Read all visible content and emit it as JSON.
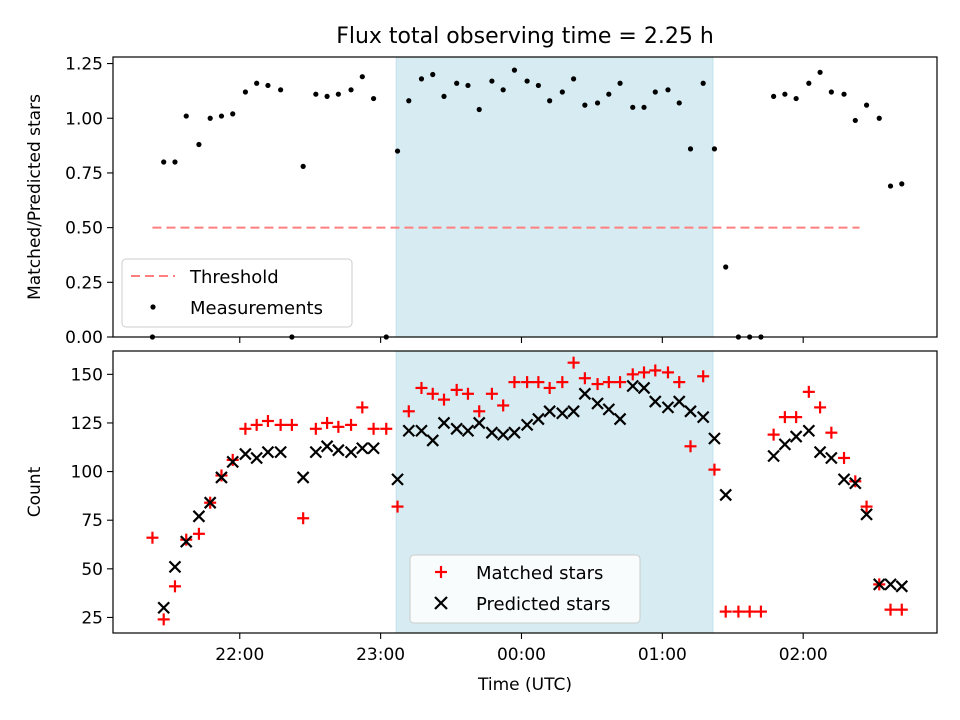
{
  "chart_data": [
    {
      "type": "scatter",
      "title": "Flux total observing time = 2.25 h",
      "ylabel": "Matched/Predicted stars",
      "xlabel": "",
      "x_unit": "hours after 22:00 UTC (negative = before 22:00)",
      "xlim": [
        -0.9,
        4.95
      ],
      "ylim": [
        0,
        1.28
      ],
      "yticks": [
        "0.00",
        "0.25",
        "0.50",
        "0.75",
        "1.00",
        "1.25"
      ],
      "shaded_span": [
        1.11,
        3.36
      ],
      "threshold": {
        "name": "Threshold",
        "value": 0.5,
        "x_range": [
          -0.62,
          4.4
        ],
        "color": "#ff7f7f"
      },
      "series": [
        {
          "name": "Measurements",
          "color": "#000000",
          "x": [
            -0.62,
            -0.54,
            -0.46,
            -0.38,
            -0.29,
            -0.21,
            -0.13,
            -0.05,
            0.04,
            0.12,
            0.2,
            0.29,
            0.37,
            0.45,
            0.54,
            0.62,
            0.7,
            0.79,
            0.87,
            0.95,
            1.04,
            1.12,
            1.2,
            1.29,
            1.37,
            1.45,
            1.54,
            1.62,
            1.7,
            1.79,
            1.87,
            1.95,
            2.04,
            2.12,
            2.2,
            2.29,
            2.37,
            2.45,
            2.54,
            2.62,
            2.7,
            2.79,
            2.87,
            2.95,
            3.04,
            3.12,
            3.2,
            3.29,
            3.37,
            3.45,
            3.54,
            3.62,
            3.7,
            3.79,
            3.87,
            3.95,
            4.04,
            4.12,
            4.2,
            4.29,
            4.37,
            4.45,
            4.54,
            4.62,
            4.7
          ],
          "y": [
            0.0,
            0.8,
            0.8,
            1.01,
            0.88,
            1.0,
            1.01,
            1.02,
            1.12,
            1.16,
            1.15,
            1.13,
            0.0,
            0.78,
            1.11,
            1.1,
            1.11,
            1.13,
            1.19,
            1.09,
            0.0,
            0.85,
            1.08,
            1.18,
            1.2,
            1.1,
            1.16,
            1.15,
            1.04,
            1.17,
            1.13,
            1.22,
            1.17,
            1.15,
            1.08,
            1.12,
            1.18,
            1.06,
            1.07,
            1.11,
            1.16,
            1.05,
            1.05,
            1.12,
            1.13,
            1.07,
            0.86,
            1.16,
            0.86,
            0.32,
            0.0,
            0.0,
            0.0,
            1.1,
            1.11,
            1.09,
            1.16,
            1.21,
            1.12,
            1.11,
            0.99,
            1.06,
            1.0,
            0.69,
            0.7
          ]
        }
      ]
    },
    {
      "type": "scatter",
      "title": "",
      "xlabel": "Time (UTC)",
      "ylabel": "Count",
      "x_unit": "hours after 22:00 UTC (negative = before 22:00)",
      "xlim": [
        -0.9,
        4.95
      ],
      "ylim": [
        17,
        162
      ],
      "xtick_values": [
        0,
        1,
        2,
        3,
        4
      ],
      "xticks": [
        "22:00",
        "23:00",
        "00:00",
        "01:00",
        "02:00"
      ],
      "yticks": [
        "25",
        "50",
        "75",
        "100",
        "125",
        "150"
      ],
      "shaded_span": [
        1.11,
        3.36
      ],
      "series": [
        {
          "name": "Matched stars",
          "color": "#ff0000",
          "marker": "+",
          "x": [
            -0.62,
            -0.54,
            -0.46,
            -0.38,
            -0.29,
            -0.21,
            -0.13,
            -0.05,
            0.04,
            0.12,
            0.2,
            0.29,
            0.37,
            0.45,
            0.54,
            0.62,
            0.7,
            0.79,
            0.87,
            0.95,
            1.04,
            1.12,
            1.2,
            1.29,
            1.37,
            1.45,
            1.54,
            1.62,
            1.7,
            1.79,
            1.87,
            1.95,
            2.04,
            2.12,
            2.2,
            2.29,
            2.37,
            2.45,
            2.54,
            2.62,
            2.7,
            2.79,
            2.87,
            2.95,
            3.04,
            3.12,
            3.2,
            3.29,
            3.37,
            3.45,
            3.54,
            3.62,
            3.7,
            3.79,
            3.87,
            3.95,
            4.04,
            4.12,
            4.2,
            4.29,
            4.37,
            4.45,
            4.54,
            4.62,
            4.7
          ],
          "y": [
            66,
            24,
            41,
            65,
            68,
            84,
            98,
            106,
            122,
            124,
            126,
            124,
            124,
            76,
            122,
            125,
            123,
            124,
            133,
            122,
            122,
            82,
            131,
            143,
            140,
            137,
            142,
            140,
            131,
            140,
            134,
            146,
            146,
            146,
            143,
            146,
            156,
            148,
            145,
            146,
            146,
            150,
            151,
            152,
            151,
            146,
            113,
            149,
            101,
            28,
            28,
            28,
            28,
            119,
            128,
            128,
            141,
            133,
            120,
            107,
            95,
            82,
            42,
            29,
            29
          ]
        },
        {
          "name": "Predicted stars",
          "color": "#000000",
          "marker": "x",
          "x": [
            -0.54,
            -0.46,
            -0.38,
            -0.29,
            -0.21,
            -0.13,
            -0.05,
            0.04,
            0.12,
            0.2,
            0.29,
            0.45,
            0.54,
            0.62,
            0.7,
            0.79,
            0.87,
            0.95,
            1.12,
            1.2,
            1.29,
            1.37,
            1.45,
            1.54,
            1.62,
            1.7,
            1.79,
            1.87,
            1.95,
            2.04,
            2.12,
            2.2,
            2.29,
            2.37,
            2.45,
            2.54,
            2.62,
            2.7,
            2.79,
            2.87,
            2.95,
            3.04,
            3.12,
            3.2,
            3.29,
            3.37,
            3.45,
            3.79,
            3.87,
            3.95,
            4.04,
            4.12,
            4.2,
            4.29,
            4.37,
            4.45,
            4.54,
            4.62,
            4.7
          ],
          "y": [
            30,
            51,
            64,
            77,
            84,
            97,
            105,
            109,
            107,
            110,
            110,
            97,
            110,
            113,
            111,
            110,
            112,
            112,
            96,
            121,
            121,
            116,
            125,
            122,
            121,
            125,
            120,
            119,
            120,
            124,
            127,
            131,
            130,
            131,
            140,
            135,
            132,
            127,
            144,
            143,
            136,
            133,
            136,
            131,
            128,
            117,
            88,
            108,
            114,
            118,
            121,
            110,
            107,
            96,
            94,
            78,
            42,
            42,
            41
          ]
        }
      ]
    }
  ]
}
